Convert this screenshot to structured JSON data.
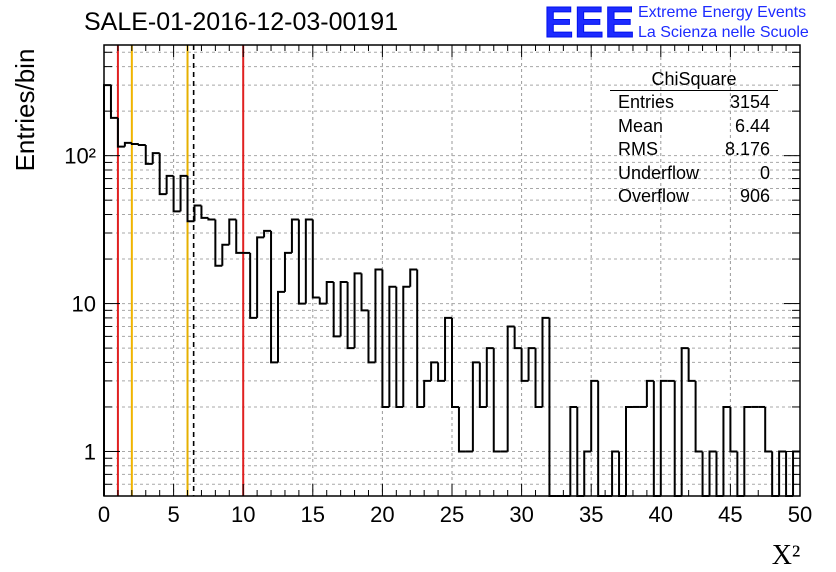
{
  "header": {
    "run_title": "SALE-01-2016-12-03-00191"
  },
  "logo": {
    "mark": "EEE",
    "line1": "Extreme Energy Events",
    "line2": "La Scienza nelle Scuole",
    "color": "#1d2bff"
  },
  "stats_box": {
    "title": "ChiSquare",
    "rows": [
      {
        "label": "Entries",
        "value": "3154"
      },
      {
        "label": "Mean",
        "value": "6.44"
      },
      {
        "label": "RMS",
        "value": "8.176"
      },
      {
        "label": "Underflow",
        "value": "0"
      },
      {
        "label": "Overflow",
        "value": "906"
      }
    ]
  },
  "chart_data": {
    "type": "bar",
    "histogram": true,
    "title": "SALE-01-2016-12-03-00191",
    "xlabel": "X²",
    "ylabel": "Entries/bin",
    "xlim": [
      0,
      50
    ],
    "ylim": [
      0.5,
      560
    ],
    "y_scale": "log",
    "grid": true,
    "bin_width": 0.5,
    "x_ticks": [
      "0",
      "5",
      "10",
      "15",
      "20",
      "25",
      "30",
      "35",
      "40",
      "45",
      "50"
    ],
    "y_ticks": [
      {
        "value": 1,
        "label": "1"
      },
      {
        "value": 10,
        "label": "10"
      },
      {
        "value": 100,
        "label": "10²"
      }
    ],
    "values": [
      300,
      180,
      115,
      122,
      120,
      118,
      88,
      104,
      55,
      73,
      42,
      73,
      36,
      46,
      38,
      37,
      18,
      25,
      37,
      22,
      22,
      8,
      28,
      31,
      4,
      12,
      22,
      37,
      10,
      37,
      11,
      10,
      14,
      6,
      14,
      5,
      16,
      9,
      4,
      17,
      2,
      13,
      2,
      13,
      17,
      2,
      3,
      4,
      3,
      8,
      2,
      1,
      1,
      4,
      2,
      5,
      1,
      1,
      7,
      5,
      3,
      5,
      2,
      8,
      0,
      0,
      0.5,
      2,
      0.5,
      1,
      3,
      0.5,
      0,
      1,
      0.5,
      2,
      2,
      2,
      3,
      0.5,
      3,
      3,
      0.5,
      5,
      3,
      1,
      0,
      1,
      0,
      2,
      1,
      0,
      2,
      2,
      2,
      1,
      0,
      1,
      0,
      1
    ],
    "vertical_lines": [
      {
        "x": 1.0,
        "color": "#e02020",
        "style": "solid"
      },
      {
        "x": 2.0,
        "color": "#f0b400",
        "style": "solid"
      },
      {
        "x": 6.0,
        "color": "#e6b000",
        "style": "solid"
      },
      {
        "x": 6.44,
        "color": "#000000",
        "style": "dashed"
      },
      {
        "x": 10.0,
        "color": "#e02020",
        "style": "solid"
      }
    ]
  }
}
